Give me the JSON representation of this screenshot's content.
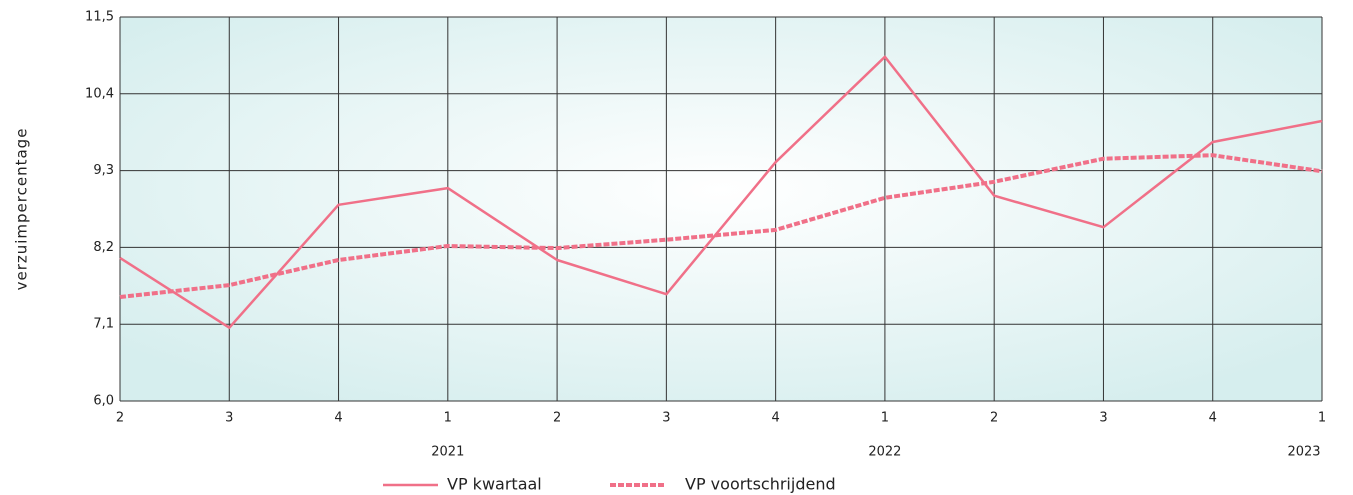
{
  "chart_data": {
    "type": "line",
    "ylabel": "verzuimpercentage",
    "categories": [
      "2",
      "3",
      "4",
      "1",
      "2",
      "3",
      "4",
      "1",
      "2",
      "3",
      "4",
      "1"
    ],
    "year_labels": [
      null,
      null,
      null,
      "2021",
      null,
      null,
      null,
      "2022",
      null,
      null,
      null,
      "2023"
    ],
    "series": [
      {
        "name": "VP kwartaal",
        "color": "#f07088",
        "style": "solid",
        "values": [
          8.05,
          7.05,
          8.81,
          9.05,
          8.02,
          7.53,
          9.42,
          10.93,
          8.94,
          8.49,
          9.71,
          10.01
        ]
      },
      {
        "name": "VP voortschrijdend",
        "color": "#f07088",
        "style": "dashed",
        "values": [
          7.49,
          7.66,
          8.02,
          8.22,
          8.19,
          8.31,
          8.45,
          8.91,
          9.14,
          9.47,
          9.52,
          9.29
        ]
      }
    ],
    "ylim": [
      6.0,
      11.5
    ],
    "yticks": [
      {
        "value": 6.0,
        "label": "6,0"
      },
      {
        "value": 7.1,
        "label": "7,1"
      },
      {
        "value": 8.2,
        "label": "8,2"
      },
      {
        "value": 9.3,
        "label": "9,3"
      },
      {
        "value": 10.4,
        "label": "10,4"
      },
      {
        "value": 11.5,
        "label": "11,5"
      }
    ],
    "grid": true
  }
}
